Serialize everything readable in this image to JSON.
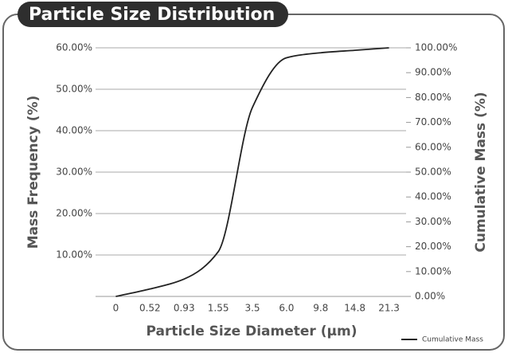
{
  "chart_data": {
    "type": "line",
    "title": "Particle Size Distribution",
    "x_label": "Particle Size Diameter (µm)",
    "y_label": "Mass Frequency (%)",
    "y2_label": "Cumulative Mass (%)",
    "categories": [
      "0",
      "0.52",
      "0.93",
      "1.55",
      "3.5",
      "6.0",
      "9.8",
      "14.8",
      "21.3"
    ],
    "series": [
      {
        "name": "Cumulative Mass",
        "color": "#222222",
        "axis": "y2",
        "values": [
          0,
          3,
          7,
          18,
          76,
          96,
          98,
          99,
          100
        ]
      }
    ],
    "ylim": [
      0,
      60
    ],
    "yticks": [
      {
        "value": 10,
        "label": "10.00%"
      },
      {
        "value": 20,
        "label": "20.00%"
      },
      {
        "value": 30,
        "label": "30.00%"
      },
      {
        "value": 40,
        "label": "40.00%"
      },
      {
        "value": 50,
        "label": "50.00%"
      },
      {
        "value": 60,
        "label": "60.00%"
      }
    ],
    "y2lim": [
      0,
      100
    ],
    "y2ticks": [
      {
        "value": 0,
        "label": "0.00%"
      },
      {
        "value": 10,
        "label": "10.00%"
      },
      {
        "value": 20,
        "label": "20.00%"
      },
      {
        "value": 30,
        "label": "30.00%"
      },
      {
        "value": 40,
        "label": "40.00%"
      },
      {
        "value": 50,
        "label": "50.00%"
      },
      {
        "value": 60,
        "label": "60.00%"
      },
      {
        "value": 70,
        "label": "70.00%"
      },
      {
        "value": 80,
        "label": "80.00%"
      },
      {
        "value": 90,
        "label": "90.00%"
      },
      {
        "value": 100,
        "label": "100.00%"
      }
    ],
    "grid": true,
    "legend": "bottom-right"
  }
}
